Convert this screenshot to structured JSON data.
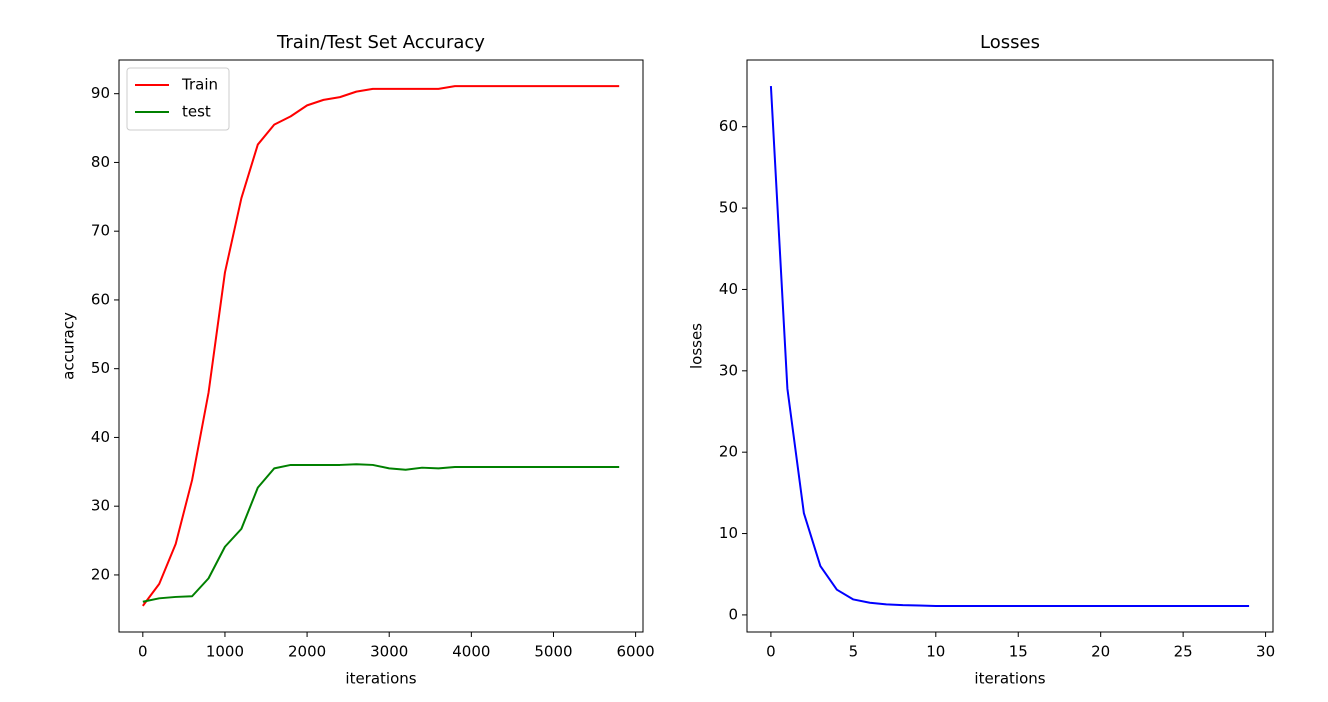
{
  "chart_data": [
    {
      "type": "line",
      "title": "Train/Test Set Accuracy",
      "xlabel": "iterations",
      "ylabel": "accuracy",
      "x": [
        0,
        200,
        400,
        600,
        800,
        1000,
        1200,
        1400,
        1600,
        1800,
        2000,
        2200,
        2400,
        2600,
        2800,
        3000,
        3200,
        3400,
        3600,
        3800,
        4000,
        4200,
        4400,
        4600,
        4800,
        5000,
        5200,
        5400,
        5600,
        5800
      ],
      "series": [
        {
          "name": "Train",
          "color": "#ff0000",
          "values": [
            15.5,
            18.7,
            24.5,
            33.8,
            46.5,
            64,
            74.8,
            82.6,
            85.5,
            86.7,
            88.3,
            89.1,
            89.5,
            90.3,
            90.7,
            90.7,
            90.7,
            90.7,
            90.7,
            91.1,
            91.1,
            91.1,
            91.1,
            91.1,
            91.1,
            91.1,
            91.1,
            91.1,
            91.1,
            91.1
          ]
        },
        {
          "name": "test",
          "color": "#008000",
          "values": [
            16.1,
            16.6,
            16.8,
            16.9,
            19.5,
            24.1,
            26.7,
            32.7,
            35.5,
            36.0,
            36.0,
            36.0,
            36.0,
            36.1,
            36.0,
            35.5,
            35.3,
            35.6,
            35.5,
            35.7,
            35.7,
            35.7,
            35.7,
            35.7,
            35.7,
            35.7,
            35.7,
            35.7,
            35.7,
            35.7
          ]
        }
      ],
      "xlim": [
        -290,
        6090
      ],
      "xticks": [
        0,
        1000,
        2000,
        3000,
        4000,
        5000,
        6000
      ],
      "ylim": [
        11.7,
        94.9
      ],
      "yticks": [
        20,
        30,
        40,
        50,
        60,
        70,
        80,
        90
      ],
      "legend": "upper left"
    },
    {
      "type": "line",
      "title": "Losses",
      "xlabel": "iterations",
      "ylabel": "losses",
      "x": [
        0,
        1,
        2,
        3,
        4,
        5,
        6,
        7,
        8,
        9,
        10,
        11,
        12,
        13,
        14,
        15,
        16,
        17,
        18,
        19,
        20,
        21,
        22,
        23,
        24,
        25,
        26,
        27,
        28,
        29
      ],
      "values": [
        65,
        27.8,
        12.5,
        6,
        3.1,
        1.9,
        1.5,
        1.3,
        1.2,
        1.15,
        1.1,
        1.1,
        1.1,
        1.1,
        1.1,
        1.1,
        1.1,
        1.1,
        1.1,
        1.1,
        1.1,
        1.1,
        1.1,
        1.1,
        1.1,
        1.1,
        1.1,
        1.1,
        1.1,
        1.1
      ],
      "color": "#0000ff",
      "xlim": [
        -1.45,
        30.45
      ],
      "xticks": [
        0,
        5,
        10,
        15,
        20,
        25,
        30
      ],
      "ylim": [
        -2.1,
        68.2
      ],
      "yticks": [
        0,
        10,
        20,
        30,
        40,
        50,
        60
      ]
    }
  ]
}
